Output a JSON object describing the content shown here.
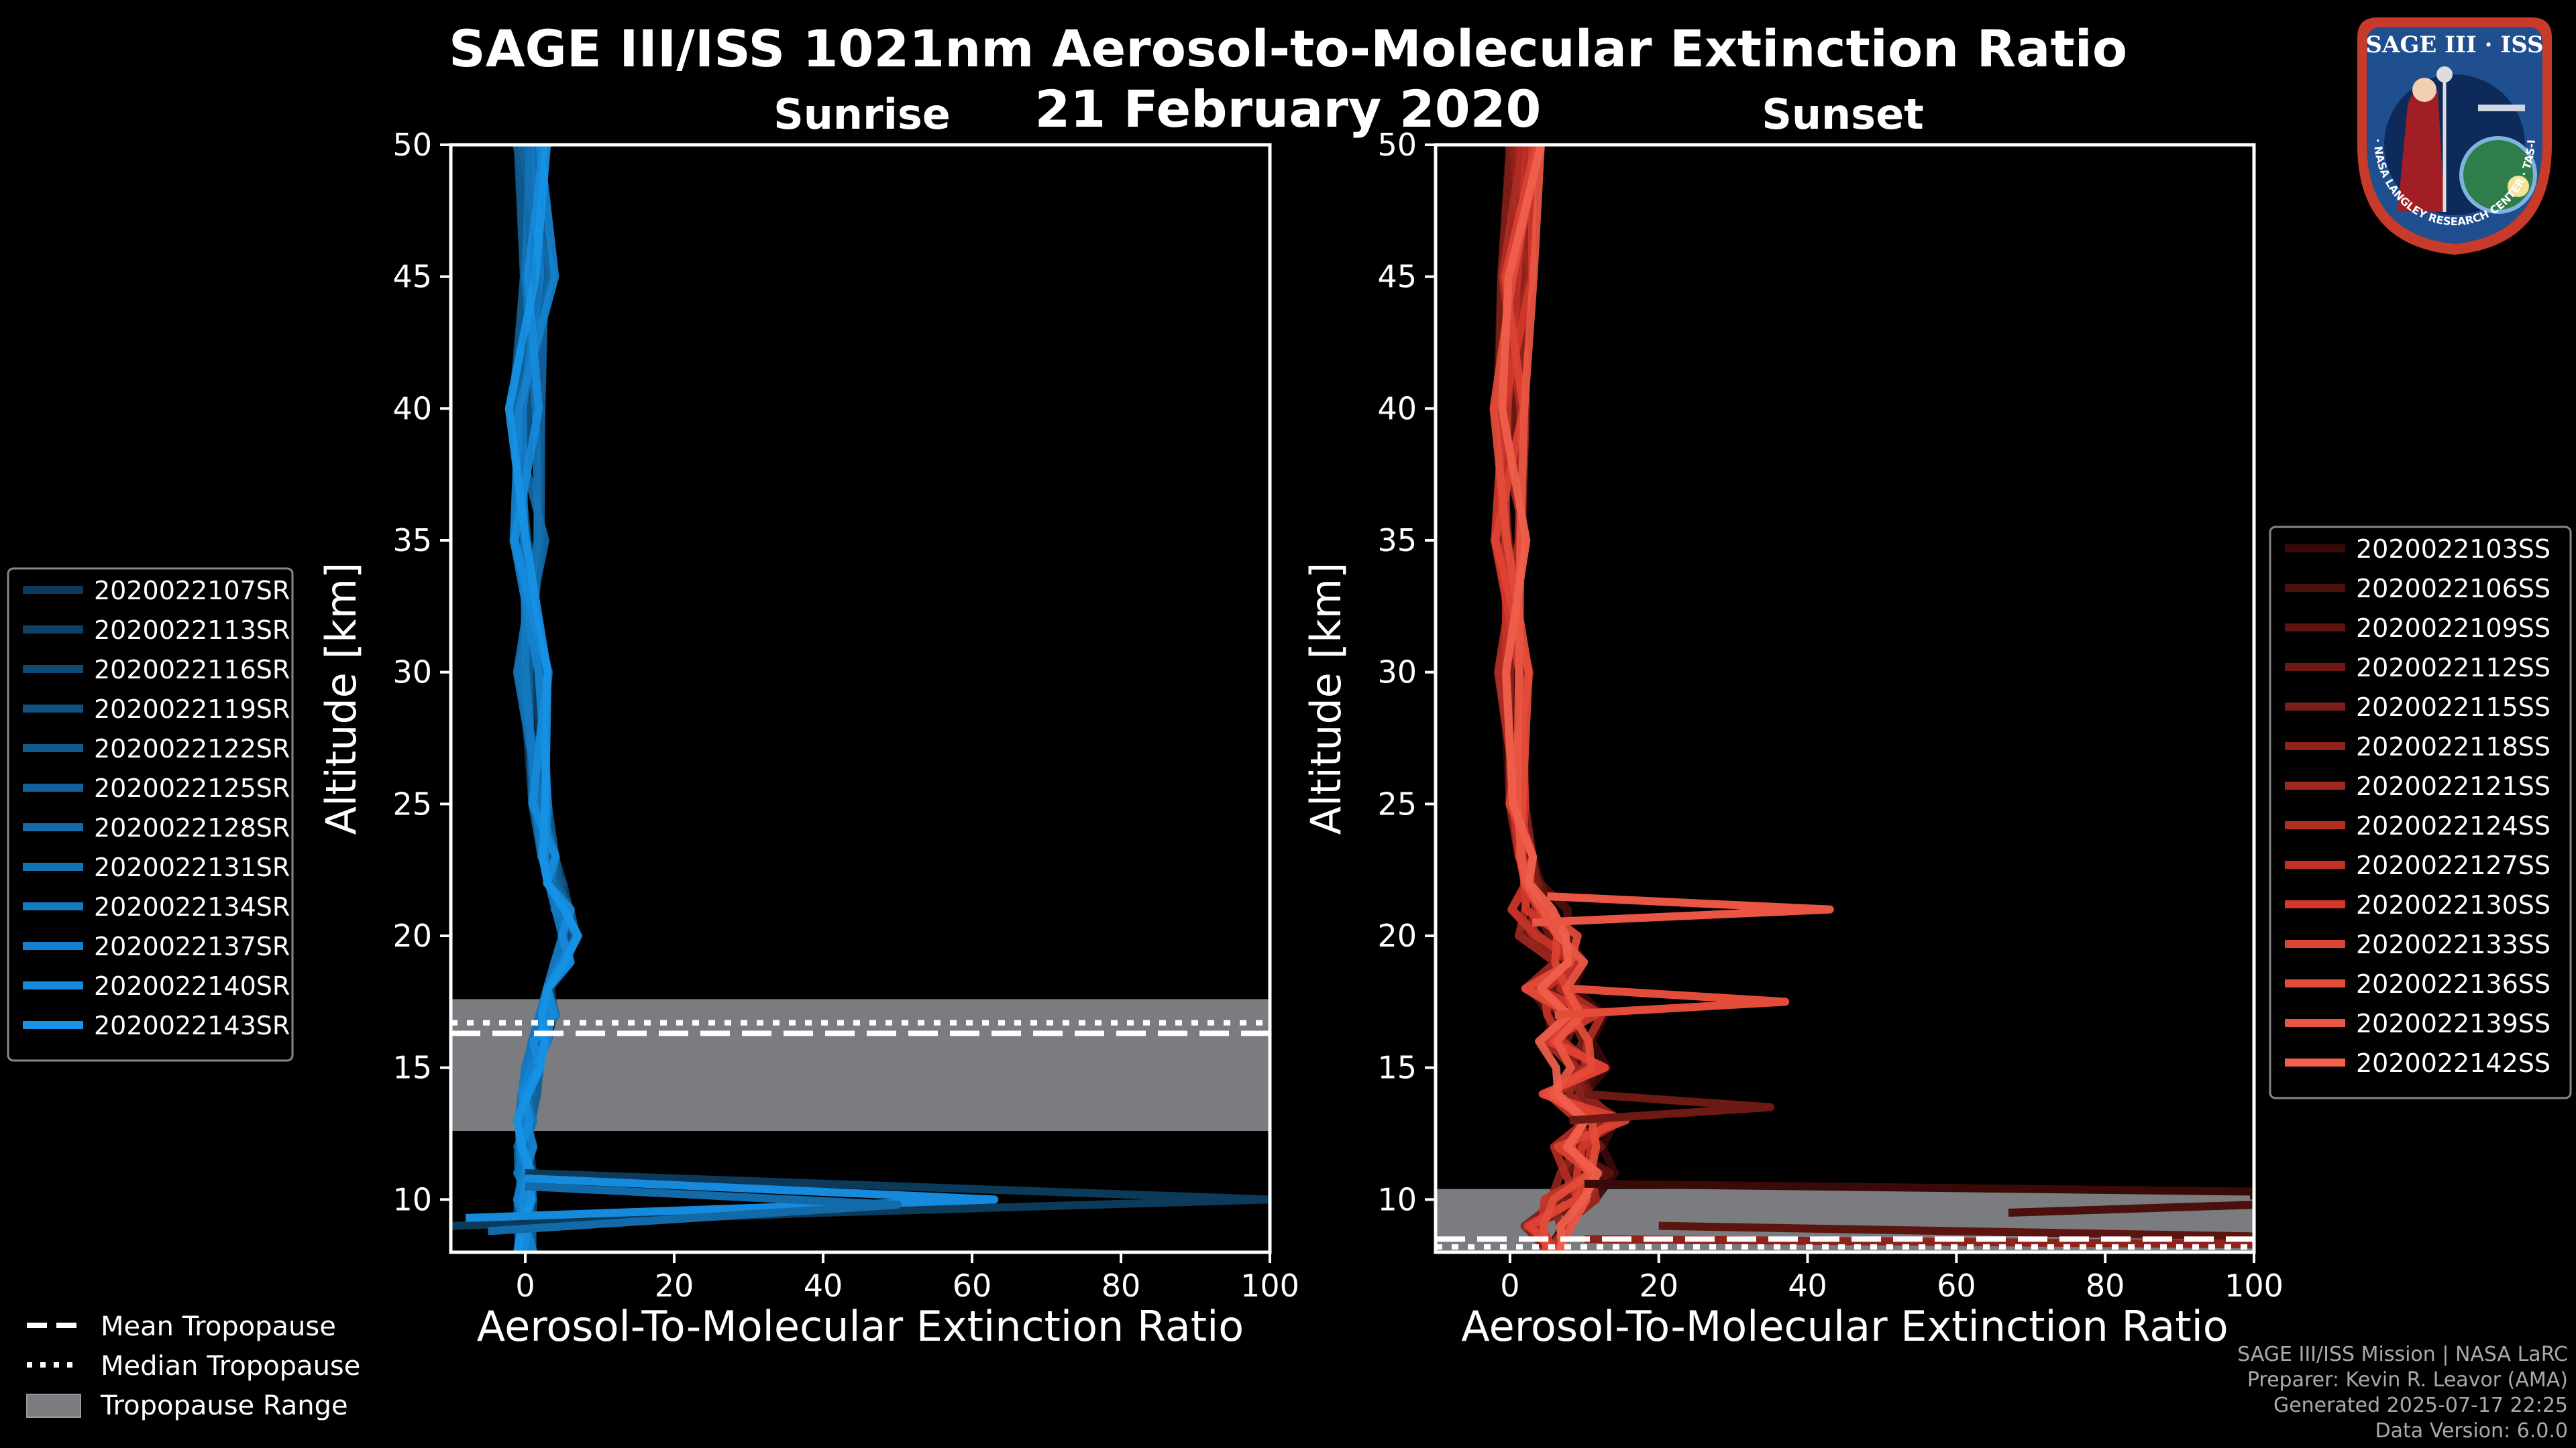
{
  "title_line1": "SAGE III/ISS 1021nm Aerosol-to-Molecular Extinction Ratio",
  "title_line2": "21 February 2020",
  "colors": {
    "background": "#000000",
    "sunrise_series": [
      "#0c3a5a",
      "#0d4267",
      "#0e4a74",
      "#0f5281",
      "#105a8e",
      "#11629b",
      "#126aa8",
      "#1372b5",
      "#147ac2",
      "#1582cf",
      "#168adc",
      "#1792e6"
    ],
    "sunset_series": [
      "#3a0a08",
      "#4b0f0c",
      "#5c1410",
      "#6d1914",
      "#7e1e18",
      "#8f231c",
      "#a02820",
      "#b12d24",
      "#c23228",
      "#d3372c",
      "#dd4232",
      "#e44c3a",
      "#ea5643",
      "#f0604c"
    ],
    "tropopause_range": "#7a7c80"
  },
  "legends": {
    "mean_tropopause": "Mean Tropopause",
    "median_tropopause": "Median Tropopause",
    "tropopause_range": "Tropopause Range"
  },
  "credits": {
    "line1": "SAGE III/ISS Mission | NASA LaRC",
    "line2": "Preparer: Kevin R. Leavor (AMA)",
    "line3": "Generated 2025-07-17 22:25",
    "line4": "Data Version: 6.0.0"
  },
  "logo": {
    "name": "SAGE III · ISS",
    "ring_text": "BALL · NASA LANGLEY RESEARCH CENTER · TAS-I · ESA"
  },
  "chart_data": [
    {
      "type": "line",
      "title": "Sunrise",
      "xlabel": "Aerosol-To-Molecular Extinction Ratio",
      "ylabel": "Altitude [km]",
      "xlim": [
        -10,
        100
      ],
      "ylim": [
        8,
        50
      ],
      "xticks": [
        0,
        20,
        40,
        60,
        80,
        100
      ],
      "yticks": [
        10,
        15,
        20,
        25,
        30,
        35,
        40,
        45,
        50
      ],
      "series_names": [
        "2020022107SR",
        "2020022113SR",
        "2020022116SR",
        "2020022119SR",
        "2020022122SR",
        "2020022125SR",
        "2020022128SR",
        "2020022131SR",
        "2020022134SR",
        "2020022137SR",
        "2020022140SR",
        "2020022143SR"
      ],
      "profile": {
        "altitude": [
          8,
          9,
          10,
          11,
          12,
          13,
          14,
          15,
          16,
          17,
          18,
          19,
          20,
          21,
          22,
          23,
          25,
          30,
          35,
          40,
          45,
          50
        ],
        "ratio": [
          0,
          0,
          0,
          0,
          0,
          0,
          0.5,
          1,
          2,
          3,
          4,
          5,
          6,
          5,
          4,
          3,
          2,
          1,
          0.5,
          0,
          2,
          1
        ]
      },
      "spikes": [
        {
          "series": 0,
          "altitude": [
            11,
            10,
            9.5,
            9
          ],
          "ratio": [
            0,
            100,
            40,
            -10
          ]
        },
        {
          "series": 10,
          "altitude": [
            10.8,
            10,
            9.3
          ],
          "ratio": [
            0,
            63,
            -8
          ]
        },
        {
          "series": 6,
          "altitude": [
            10.5,
            9.8,
            8.8
          ],
          "ratio": [
            0,
            50,
            -5
          ]
        }
      ],
      "tropopause": {
        "mean": 16.3,
        "median": 16.7,
        "range": [
          12.6,
          17.6
        ]
      }
    },
    {
      "type": "line",
      "title": "Sunset",
      "xlabel": "Aerosol-To-Molecular Extinction Ratio",
      "ylabel": "Altitude [km]",
      "xlim": [
        -10,
        100
      ],
      "ylim": [
        8,
        50
      ],
      "xticks": [
        0,
        20,
        40,
        60,
        80,
        100
      ],
      "yticks": [
        10,
        15,
        20,
        25,
        30,
        35,
        40,
        45,
        50
      ],
      "series_names": [
        "2020022103SS",
        "2020022106SS",
        "2020022109SS",
        "2020022112SS",
        "2020022115SS",
        "2020022118SS",
        "2020022121SS",
        "2020022124SS",
        "2020022127SS",
        "2020022130SS",
        "2020022133SS",
        "2020022136SS",
        "2020022139SS",
        "2020022142SS"
      ],
      "profile": {
        "altitude": [
          8,
          9,
          10,
          11,
          12,
          13,
          14,
          15,
          16,
          17,
          18,
          19,
          20,
          21,
          22,
          23,
          25,
          30,
          35,
          40,
          45,
          50
        ],
        "ratio": [
          3,
          5,
          8,
          10,
          9,
          12,
          8,
          10,
          7,
          9,
          6,
          8,
          5,
          4,
          3,
          2,
          1,
          0.5,
          0,
          0,
          1,
          2
        ]
      },
      "spikes": [
        {
          "series": 12,
          "altitude": [
            21.5,
            21,
            20.5
          ],
          "ratio": [
            5,
            43,
            3
          ]
        },
        {
          "series": 11,
          "altitude": [
            18,
            17.5,
            17
          ],
          "ratio": [
            8,
            37,
            6
          ]
        },
        {
          "series": 3,
          "altitude": [
            14,
            13.5,
            13
          ],
          "ratio": [
            10,
            35,
            8
          ]
        },
        {
          "series": 0,
          "altitude": [
            10.6,
            10.3,
            10
          ],
          "ratio": [
            10,
            100,
            100
          ]
        },
        {
          "series": 1,
          "altitude": [
            9.8,
            9.5
          ],
          "ratio": [
            100,
            67
          ]
        },
        {
          "series": 2,
          "altitude": [
            9,
            8.6
          ],
          "ratio": [
            20,
            100
          ]
        },
        {
          "series": 5,
          "altitude": [
            8.5,
            8.3
          ],
          "ratio": [
            10,
            100
          ]
        }
      ],
      "tropopause": {
        "mean": 8.5,
        "median": 8.2,
        "range": [
          8,
          10.4
        ]
      }
    }
  ]
}
